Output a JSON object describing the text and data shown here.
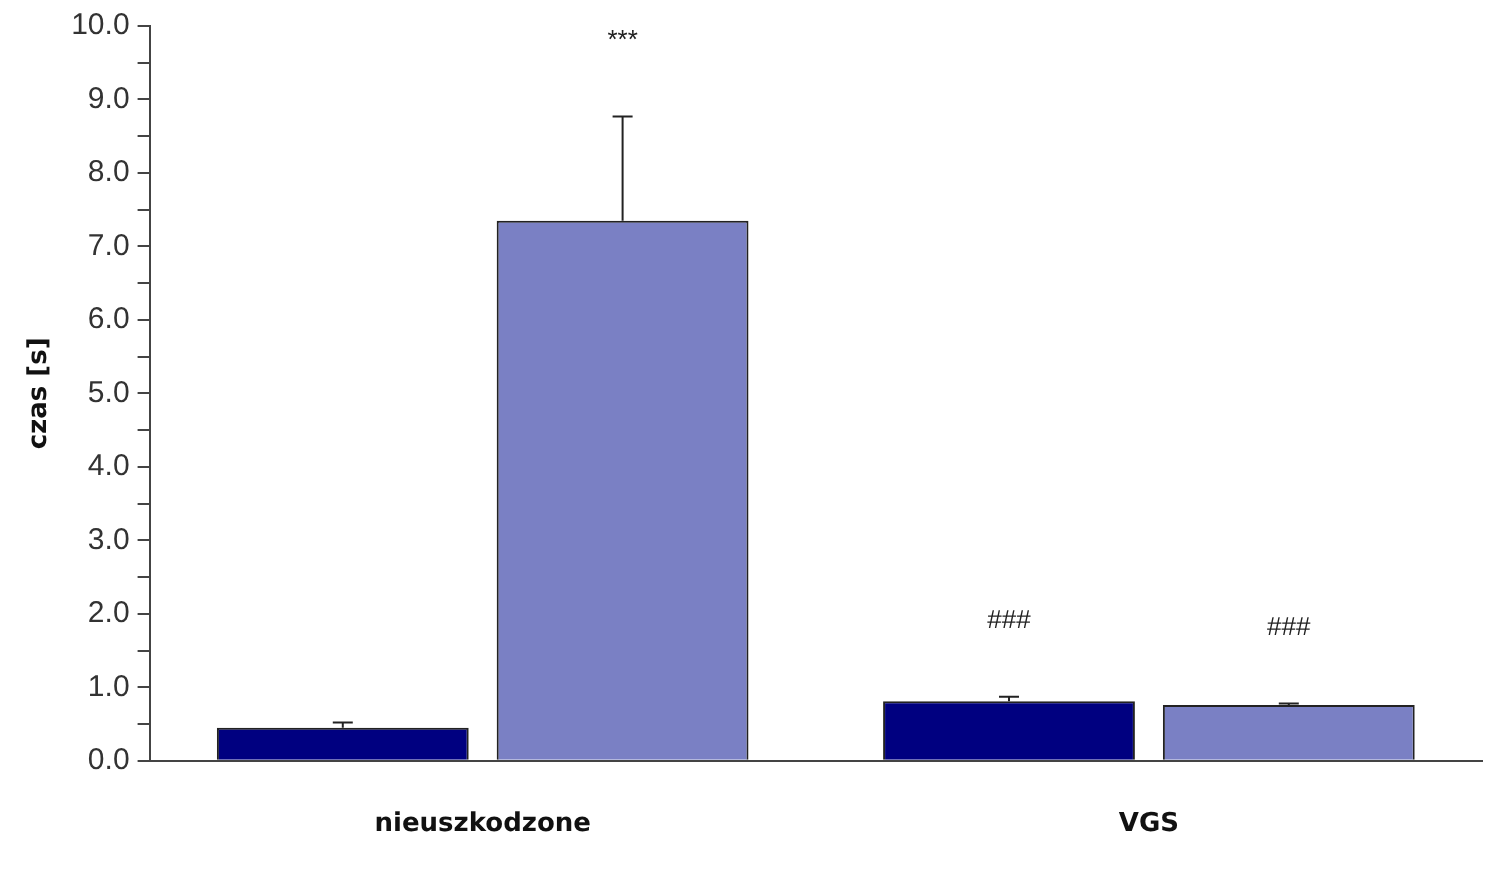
{
  "chart_data": {
    "type": "bar",
    "ylabel": "czas [s]",
    "categories": [
      "nieuszkodzone",
      "VGS"
    ],
    "series": [
      {
        "color": "#000080",
        "values": [
          0.45,
          0.81
        ],
        "errors": [
          [
            0.45,
            0.52
          ],
          [
            0.81,
            0.87
          ]
        ]
      },
      {
        "color": "#7a80c4",
        "values": [
          7.35,
          0.76
        ],
        "errors": [
          [
            7.35,
            8.77
          ],
          [
            0.76,
            0.78
          ]
        ]
      }
    ],
    "ylim": [
      0,
      10
    ],
    "yticks": [
      {
        "value": 0,
        "label": "0.0"
      },
      {
        "value": 0.5,
        "label": null
      },
      {
        "value": 1,
        "label": "1.0"
      },
      {
        "value": 1.5,
        "label": null
      },
      {
        "value": 2,
        "label": "2.0"
      },
      {
        "value": 2.5,
        "label": null
      },
      {
        "value": 3,
        "label": "3.0"
      },
      {
        "value": 3.5,
        "label": null
      },
      {
        "value": 4,
        "label": "4.0"
      },
      {
        "value": 4.5,
        "label": null
      },
      {
        "value": 5,
        "label": "5.0"
      },
      {
        "value": 5.5,
        "label": null
      },
      {
        "value": 6,
        "label": "6.0"
      },
      {
        "value": 6.5,
        "label": null
      },
      {
        "value": 7,
        "label": "7.0"
      },
      {
        "value": 7.5,
        "label": null
      },
      {
        "value": 8,
        "label": "8.0"
      },
      {
        "value": 8.5,
        "label": null
      },
      {
        "value": 9,
        "label": "9.0"
      },
      {
        "value": 9.5,
        "label": null
      },
      {
        "value": 10,
        "label": "10.0"
      }
    ],
    "annotations": [
      "***",
      "###",
      "###"
    ],
    "grid": false,
    "legend": false
  }
}
